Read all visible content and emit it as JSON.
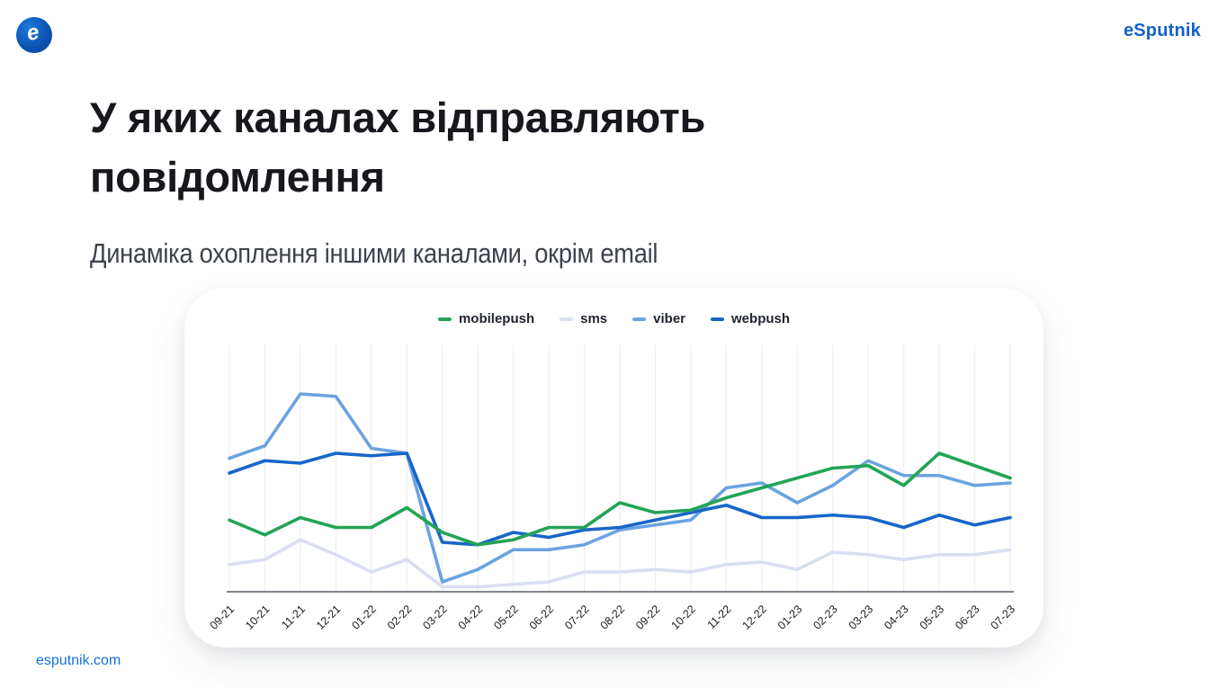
{
  "header": {
    "logo_letter": "e",
    "brand": "eSputnik",
    "brand_color": "#1261c9"
  },
  "title": "У яких каналах відправляють повідомлення",
  "subtitle": "Динаміка охоплення іншими каналами, окрім email",
  "footer": {
    "link": "esputnik.com"
  },
  "chart_data": {
    "type": "line",
    "title": "",
    "xlabel": "",
    "ylabel": "",
    "y_axis_visible": false,
    "ylim": [
      0,
      100
    ],
    "grid": "vertical-only",
    "legend_position": "top",
    "categories": [
      "09-21",
      "10-21",
      "11-21",
      "12-21",
      "01-22",
      "02-22",
      "03-22",
      "04-22",
      "05-22",
      "06-22",
      "07-22",
      "08-22",
      "09-22",
      "10-22",
      "11-22",
      "12-22",
      "01-23",
      "02-23",
      "03-23",
      "04-23",
      "05-23",
      "06-23",
      "07-23"
    ],
    "series": [
      {
        "name": "sms",
        "color": "#d9def0",
        "values": [
          11,
          13,
          21,
          15,
          8,
          13,
          2,
          2,
          3,
          4,
          8,
          8,
          9,
          8,
          11,
          12,
          9,
          16,
          15,
          13,
          15,
          15,
          17
        ]
      },
      {
        "name": "viber",
        "color": "#6aa3e0",
        "values": [
          54,
          59,
          80,
          79,
          58,
          56,
          4,
          9,
          17,
          17,
          19,
          25,
          27,
          29,
          42,
          44,
          36,
          43,
          53,
          47,
          47,
          43,
          44
        ]
      },
      {
        "name": "webpush",
        "color": "#1766c8",
        "values": [
          48,
          53,
          52,
          56,
          55,
          56,
          20,
          19,
          24,
          22,
          25,
          26,
          29,
          32,
          35,
          30,
          30,
          31,
          30,
          26,
          31,
          27,
          30
        ]
      },
      {
        "name": "mobilepush",
        "color": "#23a455",
        "values": [
          29,
          23,
          30,
          26,
          26,
          34,
          24,
          19,
          21,
          26,
          26,
          36,
          32,
          33,
          38,
          42,
          46,
          50,
          51,
          43,
          56,
          51,
          46
        ]
      }
    ],
    "legend_order": [
      "mobilepush",
      "sms",
      "viber",
      "webpush"
    ]
  }
}
